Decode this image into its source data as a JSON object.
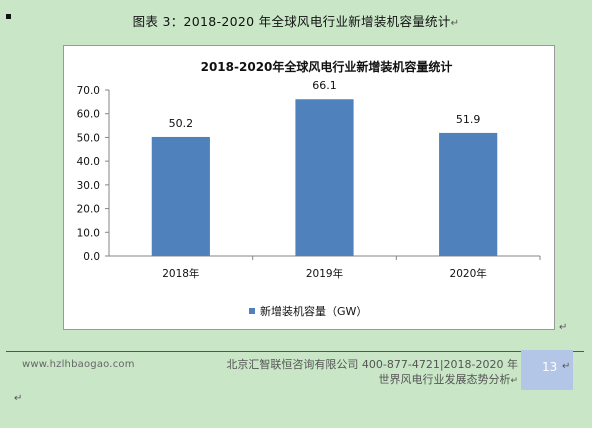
{
  "caption": {
    "text": "图表 3：2018-2020 年全球风电行业新增装机容量统计",
    "mark": "↵"
  },
  "chart_data": {
    "type": "bar",
    "title": "2018-2020年全球风电行业新增装机容量统计",
    "categories": [
      "2018年",
      "2019年",
      "2020年"
    ],
    "series": [
      {
        "name": "新增装机容量（GW）",
        "values": [
          50.2,
          66.1,
          51.9
        ]
      }
    ],
    "ylim": [
      0,
      70
    ],
    "yticks": [
      "0.0",
      "10.0",
      "20.0",
      "30.0",
      "40.0",
      "50.0",
      "60.0",
      "70.0"
    ],
    "data_labels": [
      "50.2",
      "66.1",
      "51.9"
    ],
    "legend_position": "bottom",
    "grid": false,
    "colors": {
      "bar": "#4f81bd"
    }
  },
  "after_chart_mark": "↵",
  "footer": {
    "site": "www.hzlhbaogao.com",
    "company_line1": "北京汇智联恒咨询有限公司  400-877-4721|2018-2020 年",
    "company_line2": "世界风电行业发展态势分析",
    "company_mark": "↵",
    "page": "13",
    "page_mark": "↵"
  },
  "bottom_mark": "↵"
}
